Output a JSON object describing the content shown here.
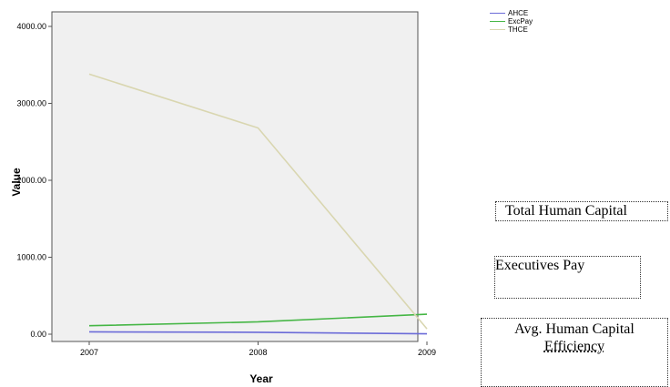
{
  "chart_data": {
    "type": "line",
    "xlabel": "Year",
    "ylabel": "Value",
    "categories": [
      "2007",
      "2008",
      "2009"
    ],
    "y_ticks": [
      "0.00",
      "1000.00",
      "2000.00",
      "3000.00",
      "4000.00"
    ],
    "ylim": [
      0,
      4000
    ],
    "grid": false,
    "legend_position": "top-right outside",
    "series": [
      {
        "name": "AHCE",
        "color": "#6b6bd8",
        "values": [
          30,
          25,
          5
        ]
      },
      {
        "name": "ExcPay",
        "color": "#45b645",
        "values": [
          110,
          160,
          260
        ]
      },
      {
        "name": "THCE",
        "color": "#d9d6b0",
        "values": [
          3380,
          2680,
          70
        ]
      }
    ]
  },
  "annotations": {
    "total": "Total Human Capital",
    "exec": "Executives Pay",
    "avg_line1": "Avg. Human Capital",
    "avg_line2": "Efficiency"
  }
}
